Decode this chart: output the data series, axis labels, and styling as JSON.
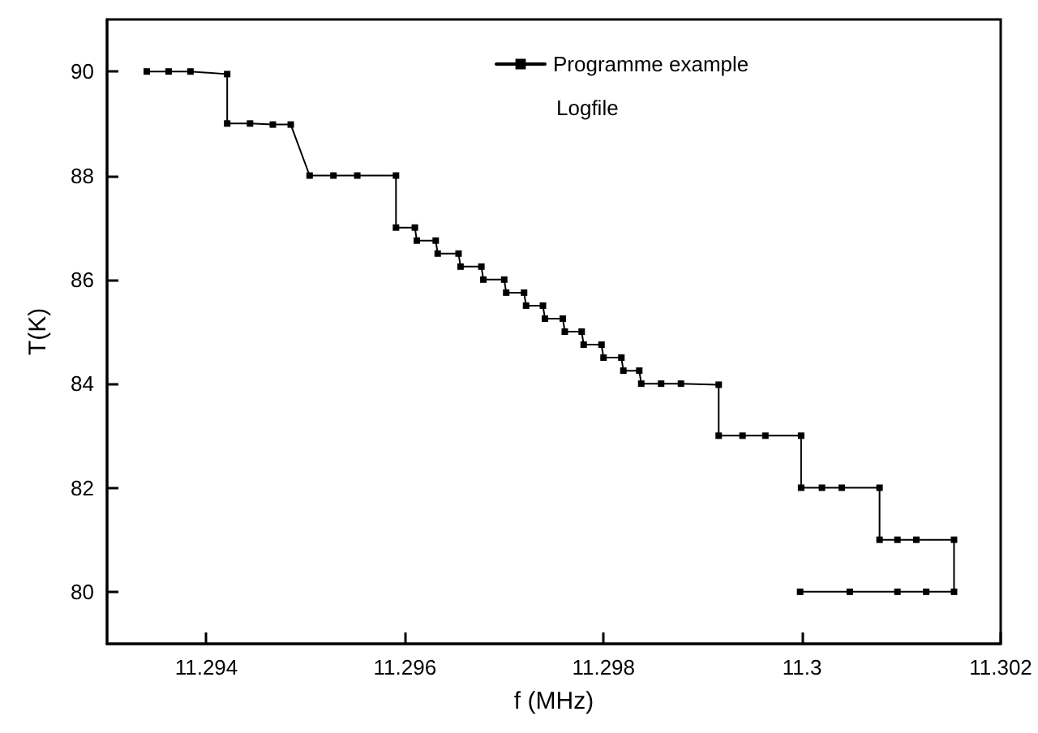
{
  "chart_data": {
    "type": "line",
    "xlabel": "f (MHz)",
    "ylabel": "T(K)",
    "xlim": [
      11.293,
      11.302
    ],
    "xticks": [
      11.294,
      11.296,
      11.298,
      11.3,
      11.302
    ],
    "ylim": [
      79,
      91
    ],
    "yticks": [
      80,
      82,
      84,
      86,
      88,
      90
    ],
    "x": [
      11.2934,
      11.29362,
      11.29384,
      11.29421,
      11.29421,
      11.29444,
      11.29467,
      11.29485,
      11.29504,
      11.29528,
      11.29552,
      11.29591,
      11.29591,
      11.2961,
      11.29612,
      11.29631,
      11.29633,
      11.29654,
      11.29656,
      11.29677,
      11.29679,
      11.297,
      11.29702,
      11.2972,
      11.29722,
      11.29739,
      11.29741,
      11.29759,
      11.29761,
      11.29778,
      11.2978,
      11.29798,
      11.298,
      11.29818,
      11.2982,
      11.29836,
      11.29838,
      11.29858,
      11.29878,
      11.29916,
      11.29916,
      11.2994,
      11.29963,
      11.29999,
      11.29999,
      11.3002,
      11.3004,
      11.30078,
      11.30078,
      11.30096,
      11.30115,
      11.30153,
      11.30153,
      11.30125,
      11.30096,
      11.30048,
      11.29998
    ],
    "series": [
      {
        "name": "Programme example",
        "color": "#000000",
        "values": [
          90,
          90,
          90,
          89.95,
          89,
          89,
          88.98,
          88.98,
          88,
          88,
          88,
          88,
          87,
          87,
          86.75,
          86.75,
          86.5,
          86.5,
          86.25,
          86.25,
          86,
          86,
          85.75,
          85.75,
          85.5,
          85.5,
          85.25,
          85.25,
          85,
          85,
          84.75,
          84.75,
          84.5,
          84.5,
          84.25,
          84.25,
          84,
          84,
          84,
          83.98,
          83,
          83,
          83,
          83,
          82,
          82,
          82,
          82,
          81,
          81,
          81,
          81,
          80,
          80,
          80,
          80,
          80
        ]
      }
    ],
    "marker": "square",
    "line_style": "solid",
    "legend": "top right",
    "grid": false,
    "annotations": [
      "Logfile"
    ]
  }
}
